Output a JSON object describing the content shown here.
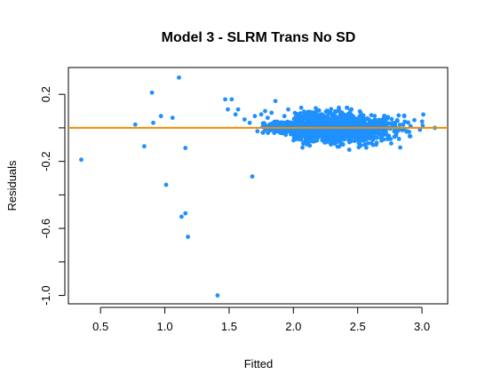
{
  "chart_data": {
    "type": "scatter",
    "title": "Model 3 - SLRM Trans No SD",
    "xlabel": "Fitted",
    "ylabel": "Residuals",
    "xlim": [
      0.25,
      3.2
    ],
    "ylim": [
      -1.05,
      0.36
    ],
    "xticks": [
      0.5,
      1.0,
      1.5,
      2.0,
      2.5,
      3.0
    ],
    "xtick_labels": [
      "0.5",
      "1.0",
      "1.5",
      "2.0",
      "2.5",
      "3.0"
    ],
    "yticks": [
      0.2,
      -0.2,
      -0.6,
      -1.0
    ],
    "ytick_labels": [
      "0.2",
      "-0.2",
      "-0.6",
      "-1.0"
    ],
    "yticks_minor": [
      0.0,
      -0.4,
      -0.8
    ],
    "grid": false,
    "reference_line": {
      "y": 0.0,
      "color": "#f28c00"
    },
    "point_color": "#1e90ff",
    "outliers": [
      {
        "x": 0.35,
        "y": -0.19
      },
      {
        "x": 0.77,
        "y": 0.02
      },
      {
        "x": 0.84,
        "y": -0.11
      },
      {
        "x": 0.9,
        "y": 0.21
      },
      {
        "x": 0.91,
        "y": 0.03
      },
      {
        "x": 0.97,
        "y": 0.07
      },
      {
        "x": 1.01,
        "y": -0.34
      },
      {
        "x": 1.06,
        "y": 0.06
      },
      {
        "x": 1.11,
        "y": 0.3
      },
      {
        "x": 1.13,
        "y": -0.53
      },
      {
        "x": 1.16,
        "y": -0.51
      },
      {
        "x": 1.16,
        "y": -0.12
      },
      {
        "x": 1.18,
        "y": -0.65
      },
      {
        "x": 1.41,
        "y": -1.0
      },
      {
        "x": 1.47,
        "y": 0.17
      },
      {
        "x": 1.49,
        "y": 0.11
      },
      {
        "x": 1.52,
        "y": 0.17
      },
      {
        "x": 1.55,
        "y": 0.08
      },
      {
        "x": 1.57,
        "y": 0.11
      },
      {
        "x": 1.68,
        "y": -0.29
      },
      {
        "x": 1.62,
        "y": 0.05
      },
      {
        "x": 1.66,
        "y": 0.03
      },
      {
        "x": 1.7,
        "y": 0.07
      },
      {
        "x": 1.72,
        "y": -0.02
      },
      {
        "x": 1.75,
        "y": 0.08
      },
      {
        "x": 1.78,
        "y": 0.1
      },
      {
        "x": 1.8,
        "y": 0.06
      },
      {
        "x": 1.83,
        "y": 0.09
      },
      {
        "x": 1.86,
        "y": 0.16
      },
      {
        "x": 1.88,
        "y": 0.03
      },
      {
        "x": 1.9,
        "y": -0.03
      },
      {
        "x": 1.93,
        "y": 0.07
      },
      {
        "x": 1.96,
        "y": 0.11
      },
      {
        "x": 3.1,
        "y": 0.0
      }
    ],
    "cluster": {
      "x_range": [
        1.75,
        3.02
      ],
      "x_center": 2.3,
      "y_range": [
        -0.15,
        0.12
      ],
      "approx_count": 1400
    }
  }
}
